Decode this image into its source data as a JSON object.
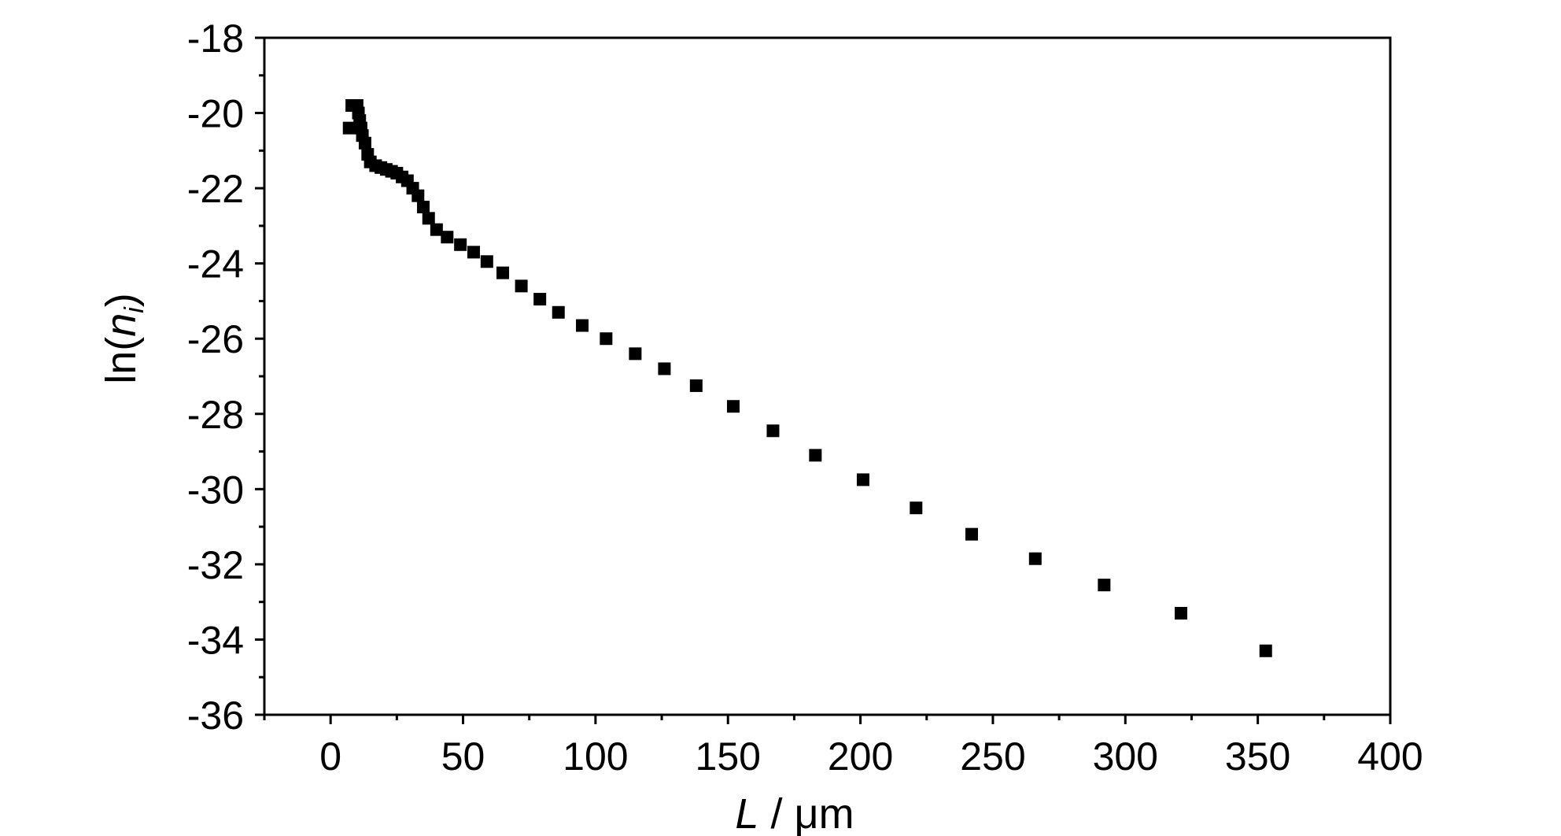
{
  "chart_data": {
    "type": "scatter",
    "xlabel": {
      "italic": "L",
      "rest": " / μm"
    },
    "ylabel": {
      "prefix": "ln(",
      "italic": "n",
      "subscript": "i",
      "suffix": ")"
    },
    "xlim": [
      -25,
      400
    ],
    "ylim": [
      -36,
      -18
    ],
    "xticks": [
      0,
      50,
      100,
      150,
      200,
      250,
      300,
      350,
      400
    ],
    "yticks": [
      -18,
      -20,
      -22,
      -24,
      -26,
      -28,
      -30,
      -32,
      -34,
      -36
    ],
    "x_minor_step": 25,
    "y_minor_step": 1,
    "grid": false,
    "marker": "square",
    "marker_color": "#000000",
    "series": [
      {
        "x": [
          7,
          8,
          9,
          10,
          10.5,
          11,
          11.5,
          12,
          13,
          14,
          15,
          17,
          19,
          21,
          23,
          25,
          27,
          29,
          31,
          33,
          35,
          37,
          40,
          44,
          49,
          54,
          59,
          65,
          72,
          79,
          86,
          95,
          104,
          115,
          126,
          138,
          152,
          167,
          183,
          201,
          221,
          242,
          266,
          292,
          321,
          353
        ],
        "y": [
          -20.4,
          -19.8,
          -19.8,
          -19.8,
          -20.0,
          -20.2,
          -20.4,
          -20.6,
          -20.8,
          -21.1,
          -21.3,
          -21.4,
          -21.45,
          -21.5,
          -21.55,
          -21.6,
          -21.7,
          -21.8,
          -22.0,
          -22.2,
          -22.5,
          -22.8,
          -23.1,
          -23.3,
          -23.5,
          -23.7,
          -23.95,
          -24.25,
          -24.6,
          -24.95,
          -25.3,
          -25.65,
          -26.0,
          -26.4,
          -26.8,
          -27.25,
          -27.8,
          -28.45,
          -29.1,
          -29.75,
          -30.5,
          -31.2,
          -31.85,
          -32.55,
          -33.3,
          -34.3
        ]
      }
    ]
  }
}
